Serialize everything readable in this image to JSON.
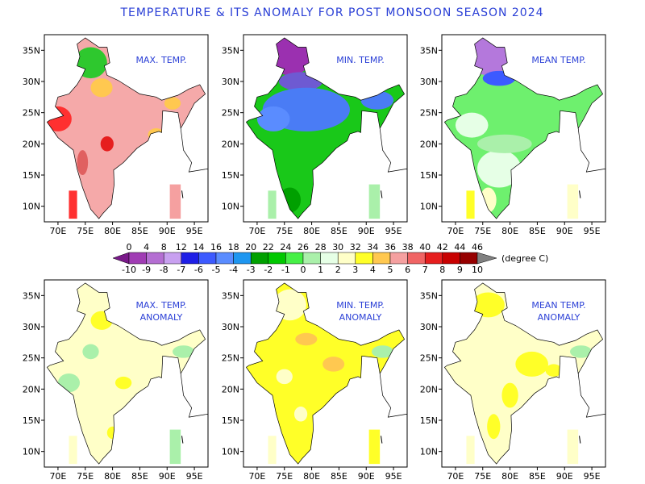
{
  "title": "TEMPERATURE   &   ITS   ANOMALY FOR POST MONSOON SEASON 2024",
  "panels": [
    {
      "label": [
        "MAX. TEMP."
      ]
    },
    {
      "label": [
        "MIN. TEMP."
      ]
    },
    {
      "label": [
        "MEAN TEMP."
      ]
    },
    {
      "label": [
        "MAX. TEMP.",
        "ANOMALY"
      ]
    },
    {
      "label": [
        "MIN. TEMP.",
        "ANOMALY"
      ]
    },
    {
      "label": [
        "MEAN TEMP.",
        "ANOMALY"
      ]
    }
  ],
  "axes": {
    "xticks": [
      "70E",
      "75E",
      "80E",
      "85E",
      "90E",
      "95E"
    ],
    "yticks": [
      "35N",
      "30N",
      "25N",
      "20N",
      "15N",
      "10N"
    ]
  },
  "colorbar": {
    "top": [
      0,
      4,
      8,
      12,
      14,
      16,
      18,
      20,
      22,
      24,
      26,
      28,
      30,
      32,
      34,
      36,
      38,
      40,
      42,
      44,
      46
    ],
    "bottom": [
      -10,
      -9,
      -8,
      -7,
      -6,
      -5,
      -4,
      -3,
      -2,
      -1,
      0,
      1,
      2,
      3,
      4,
      5,
      6,
      7,
      8,
      9,
      10
    ],
    "unit": "(degree C)",
    "colors": [
      "#a03cb4",
      "#b46ed2",
      "#c8a0f0",
      "#1e1ee6",
      "#3c5aff",
      "#5a8cff",
      "#1e96f0",
      "#00a000",
      "#00c800",
      "#46f046",
      "#aaf0aa",
      "#e6ffe6",
      "#ffffc8",
      "#ffff28",
      "#ffc850",
      "#f5a0a0",
      "#f06464",
      "#e61e1e",
      "#c80000",
      "#960000"
    ],
    "low_color": "#7a1a8a",
    "high_color": "#808080"
  }
}
